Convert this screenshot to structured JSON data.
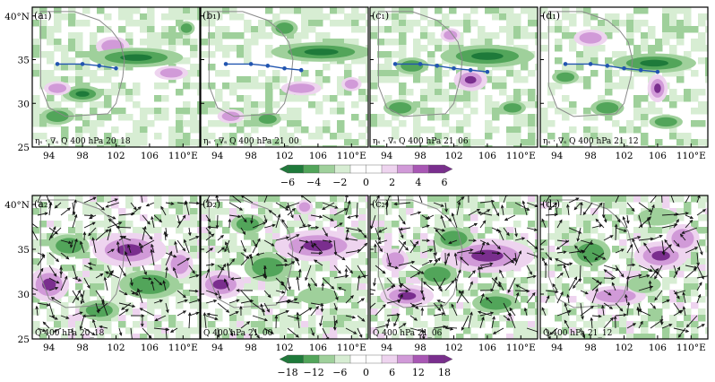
{
  "chart_data": [
    {
      "type": "heatmap",
      "panels": [
        {
          "label": "(a₁)",
          "caption": "ηₛ · ∇ₛ Q   400 hPa  20_18"
        },
        {
          "label": "(b₁)",
          "caption": "ηₛ · ∇ₛ Q   400 hPa  21_00"
        },
        {
          "label": "(c₁)",
          "caption": "ηₛ · ∇ₛ Q   400 hPa  21_06"
        },
        {
          "label": "(d₁)",
          "caption": "ηₛ · ∇ₛ Q   400 hPa  21_12"
        }
      ],
      "track_lon": [
        95,
        98,
        100,
        102,
        104,
        106
      ],
      "track_lat": [
        34.5,
        34.5,
        34.3,
        34.0,
        33.8,
        33.6
      ],
      "track_points_per_panel": [
        4,
        5,
        6,
        6
      ],
      "colorbar": {
        "ticks": [
          "−6",
          "−4",
          "−2",
          "0",
          "2",
          "4",
          "6"
        ],
        "min": -6,
        "max": 6
      }
    },
    {
      "type": "heatmap",
      "panels": [
        {
          "label": "(a₂)",
          "caption": "Q   400 hPa  20_18"
        },
        {
          "label": "(b₂)",
          "caption": "Q   400 hPa  21_00"
        },
        {
          "label": "(c₂)",
          "caption": "Q   400 hPa  21_06"
        },
        {
          "label": "(d₂)",
          "caption": "Q   400 hPa  21_12"
        }
      ],
      "colorbar": {
        "ticks": [
          "−18",
          "−12",
          "−6",
          "0",
          "6",
          "12",
          "18"
        ],
        "min": -18,
        "max": 18
      }
    }
  ],
  "axes": {
    "lon_ticks": [
      "94",
      "98",
      "102",
      "106",
      "110°E"
    ],
    "lon_values": [
      94,
      98,
      102,
      106,
      110
    ],
    "lat_ticks": [
      "40°N",
      "35",
      "30",
      "25"
    ],
    "lat_values": [
      40,
      35,
      30,
      25
    ],
    "lon_range": [
      92,
      112
    ],
    "lat_range": [
      25,
      41
    ]
  },
  "colors": {
    "green_dark": "#1e7a3a",
    "green_mid": "#52a55a",
    "green_light": "#9fd09b",
    "green_pale": "#d7edd3",
    "purple_dark": "#7a2e8e",
    "purple_mid": "#a857b4",
    "purple_light": "#d19ad8",
    "purple_pale": "#eed4ef",
    "track": "#2255b0",
    "boundary": "#8a8a8a"
  }
}
